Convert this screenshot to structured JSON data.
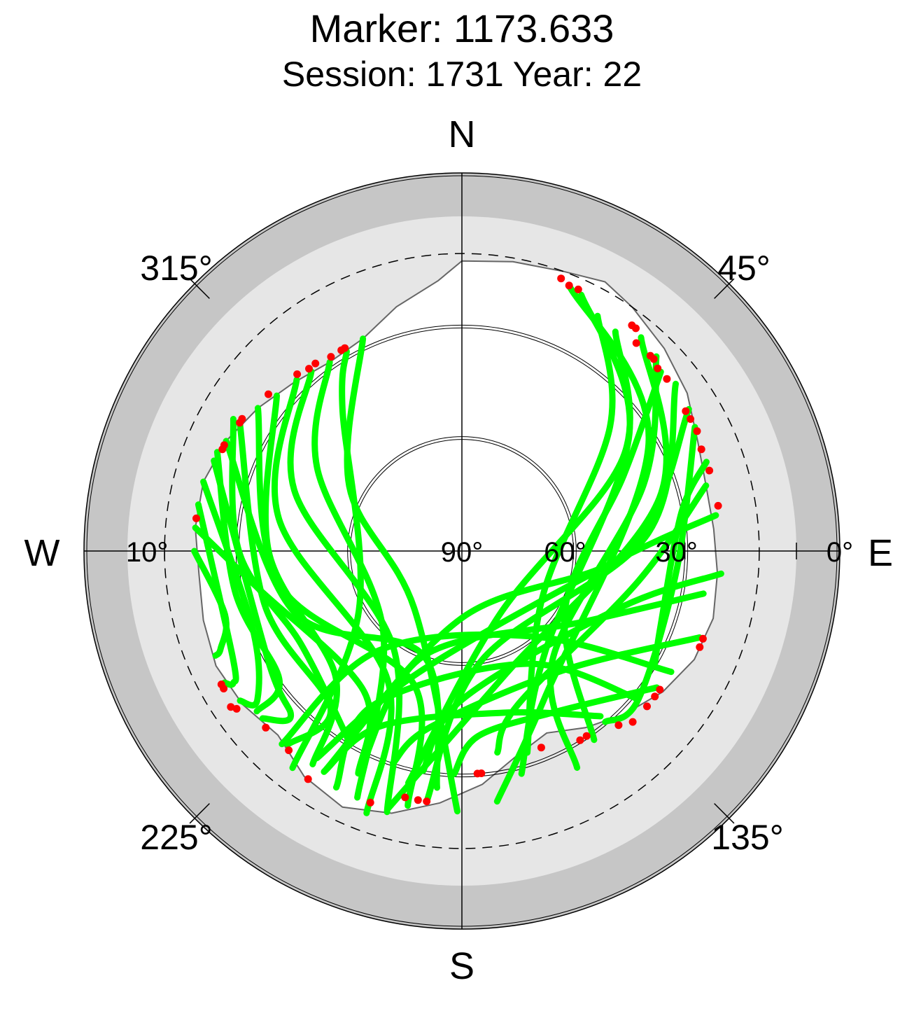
{
  "title": "Marker: 1173.633",
  "subtitle": "Session: 1731 Year: 22",
  "compass": {
    "north": "N",
    "south": "S",
    "west": "W",
    "east": "E"
  },
  "chart_data": {
    "type": "polar-sky-plot",
    "azimuth_labels": [
      {
        "azimuth": 45,
        "label": "45°"
      },
      {
        "azimuth": 135,
        "label": "135°"
      },
      {
        "azimuth": 225,
        "label": "225°"
      },
      {
        "azimuth": 315,
        "label": "315°"
      }
    ],
    "elevation_labels": [
      {
        "elevation": 90,
        "label": "90°"
      },
      {
        "elevation": 60,
        "label": "60°"
      },
      {
        "elevation": 30,
        "label": "30°"
      },
      {
        "elevation": 0,
        "label": "0°"
      },
      {
        "elevation": 10,
        "label": "10°",
        "side": "west"
      }
    ],
    "elevation_rings": [
      60,
      30,
      10
    ],
    "cutoff_elevation": 10,
    "colors": {
      "track": "#00ff00",
      "track_endpoint": "#ff0000",
      "outer_band": "#c6c6c6",
      "below_cutoff": "#e6e6e6",
      "visible_sky": "#ffffff",
      "horizon_mask_line": "#666666"
    },
    "horizon_mask": [
      {
        "az": 0,
        "el": 12
      },
      {
        "az": 10,
        "el": 11
      },
      {
        "az": 20,
        "el": 10
      },
      {
        "az": 28,
        "el": 8
      },
      {
        "az": 35,
        "el": 10
      },
      {
        "az": 45,
        "el": 13
      },
      {
        "az": 55,
        "el": 16
      },
      {
        "az": 65,
        "el": 20
      },
      {
        "az": 75,
        "el": 22
      },
      {
        "az": 85,
        "el": 22
      },
      {
        "az": 95,
        "el": 21
      },
      {
        "az": 105,
        "el": 20
      },
      {
        "az": 115,
        "el": 21
      },
      {
        "az": 125,
        "el": 24
      },
      {
        "az": 135,
        "el": 28
      },
      {
        "az": 145,
        "el": 32
      },
      {
        "az": 155,
        "el": 36
      },
      {
        "az": 165,
        "el": 33
      },
      {
        "az": 175,
        "el": 27
      },
      {
        "az": 185,
        "el": 22
      },
      {
        "az": 195,
        "el": 17
      },
      {
        "az": 205,
        "el": 14
      },
      {
        "az": 215,
        "el": 16
      },
      {
        "az": 225,
        "el": 20
      },
      {
        "az": 235,
        "el": 18
      },
      {
        "az": 245,
        "el": 17
      },
      {
        "az": 255,
        "el": 18
      },
      {
        "az": 265,
        "el": 19
      },
      {
        "az": 275,
        "el": 18
      },
      {
        "az": 285,
        "el": 18
      },
      {
        "az": 295,
        "el": 20
      },
      {
        "az": 305,
        "el": 23
      },
      {
        "az": 315,
        "el": 26
      },
      {
        "az": 325,
        "el": 28
      },
      {
        "az": 335,
        "el": 27
      },
      {
        "az": 345,
        "el": 22
      },
      {
        "az": 355,
        "el": 17
      },
      {
        "az": 360,
        "el": 12
      }
    ],
    "tracks": [
      [
        {
          "az": 22,
          "el": 13
        },
        {
          "az": 60,
          "el": 32
        },
        {
          "az": 150,
          "el": 45
        },
        {
          "az": 172,
          "el": 22
        }
      ],
      [
        {
          "az": 25,
          "el": 14
        },
        {
          "az": 55,
          "el": 35
        },
        {
          "az": 140,
          "el": 55
        },
        {
          "az": 165,
          "el": 28
        }
      ],
      [
        {
          "az": 30,
          "el": 17
        },
        {
          "az": 50,
          "el": 38
        },
        {
          "az": 120,
          "el": 65
        },
        {
          "az": 162,
          "el": 33
        }
      ],
      [
        {
          "az": 35,
          "el": 18
        },
        {
          "az": 60,
          "el": 40
        },
        {
          "az": 150,
          "el": 70
        },
        {
          "az": 193,
          "el": 26
        }
      ],
      [
        {
          "az": 40,
          "el": 15
        },
        {
          "az": 75,
          "el": 35
        },
        {
          "az": 160,
          "el": 55
        },
        {
          "az": 196,
          "el": 18
        }
      ],
      [
        {
          "az": 45,
          "el": 16
        },
        {
          "az": 70,
          "el": 38
        },
        {
          "az": 140,
          "el": 52
        },
        {
          "az": 152,
          "el": 24
        }
      ],
      [
        {
          "az": 48,
          "el": 18
        },
        {
          "az": 65,
          "el": 42
        },
        {
          "az": 120,
          "el": 58
        },
        {
          "az": 145,
          "el": 28
        }
      ],
      [
        {
          "az": 52,
          "el": 17
        },
        {
          "az": 85,
          "el": 40
        },
        {
          "az": 170,
          "el": 60
        },
        {
          "az": 188,
          "el": 22
        }
      ],
      [
        {
          "az": 58,
          "el": 18
        },
        {
          "az": 90,
          "el": 45
        },
        {
          "az": 180,
          "el": 72
        },
        {
          "az": 212,
          "el": 20
        }
      ],
      [
        {
          "az": 62,
          "el": 19
        },
        {
          "az": 95,
          "el": 32
        },
        {
          "az": 130,
          "el": 28
        },
        {
          "az": 140,
          "el": 30
        }
      ],
      [
        {
          "az": 70,
          "el": 20
        },
        {
          "az": 80,
          "el": 30
        },
        {
          "az": 110,
          "el": 33
        },
        {
          "az": 120,
          "el": 30
        }
      ],
      [
        {
          "az": 75,
          "el": 22
        },
        {
          "az": 100,
          "el": 42
        },
        {
          "az": 160,
          "el": 46
        },
        {
          "az": 170,
          "el": 35
        }
      ],
      [
        {
          "az": 82,
          "el": 21
        },
        {
          "az": 95,
          "el": 50
        },
        {
          "az": 200,
          "el": 55
        },
        {
          "az": 215,
          "el": 22
        }
      ],
      [
        {
          "az": 95,
          "el": 20
        },
        {
          "az": 110,
          "el": 45
        },
        {
          "az": 180,
          "el": 50
        },
        {
          "az": 190,
          "el": 30
        }
      ],
      [
        {
          "az": 100,
          "el": 24
        },
        {
          "az": 120,
          "el": 52
        },
        {
          "az": 200,
          "el": 60
        },
        {
          "az": 205,
          "el": 26
        }
      ],
      [
        {
          "az": 110,
          "el": 22
        },
        {
          "az": 140,
          "el": 48
        },
        {
          "az": 190,
          "el": 42
        },
        {
          "az": 198,
          "el": 30
        }
      ],
      [
        {
          "az": 120,
          "el": 25
        },
        {
          "az": 140,
          "el": 60
        },
        {
          "az": 220,
          "el": 55
        },
        {
          "az": 223,
          "el": 19
        }
      ],
      [
        {
          "az": 125,
          "el": 26
        },
        {
          "az": 150,
          "el": 40
        },
        {
          "az": 175,
          "el": 40
        },
        {
          "az": 182,
          "el": 30
        }
      ],
      [
        {
          "az": 130,
          "el": 28
        },
        {
          "az": 150,
          "el": 55
        },
        {
          "az": 210,
          "el": 42
        },
        {
          "az": 208,
          "el": 18
        }
      ],
      [
        {
          "az": 140,
          "el": 32
        },
        {
          "az": 165,
          "el": 45
        },
        {
          "az": 205,
          "el": 38
        },
        {
          "az": 212,
          "el": 20
        }
      ],
      [
        {
          "az": 330,
          "el": 28
        },
        {
          "az": 320,
          "el": 40
        },
        {
          "az": 240,
          "el": 58
        },
        {
          "az": 218,
          "el": 16
        }
      ],
      [
        {
          "az": 325,
          "el": 28
        },
        {
          "az": 300,
          "el": 45
        },
        {
          "az": 225,
          "el": 60
        },
        {
          "az": 203,
          "el": 18
        }
      ],
      [
        {
          "az": 320,
          "el": 27
        },
        {
          "az": 290,
          "el": 42
        },
        {
          "az": 215,
          "el": 58
        },
        {
          "az": 196,
          "el": 17
        }
      ],
      [
        {
          "az": 316,
          "el": 26
        },
        {
          "az": 280,
          "el": 40
        },
        {
          "az": 210,
          "el": 50
        },
        {
          "az": 200,
          "el": 15
        }
      ],
      [
        {
          "az": 310,
          "el": 25
        },
        {
          "az": 270,
          "el": 38
        },
        {
          "az": 225,
          "el": 42
        },
        {
          "az": 215,
          "el": 20
        }
      ],
      [
        {
          "az": 305,
          "el": 23
        },
        {
          "az": 260,
          "el": 40
        },
        {
          "az": 200,
          "el": 52
        },
        {
          "az": 192,
          "el": 20
        }
      ],
      [
        {
          "az": 300,
          "el": 21
        },
        {
          "az": 255,
          "el": 35
        },
        {
          "az": 220,
          "el": 35
        },
        {
          "az": 222,
          "el": 20
        }
      ],
      [
        {
          "az": 295,
          "el": 20
        },
        {
          "az": 250,
          "el": 42
        },
        {
          "az": 200,
          "el": 60
        },
        {
          "az": 186,
          "el": 26
        }
      ],
      [
        {
          "az": 290,
          "el": 19
        },
        {
          "az": 240,
          "el": 30
        },
        {
          "az": 226,
          "el": 26
        },
        {
          "az": 230,
          "el": 20
        }
      ],
      [
        {
          "az": 285,
          "el": 18
        },
        {
          "az": 250,
          "el": 30
        },
        {
          "az": 234,
          "el": 22
        },
        {
          "az": 236,
          "el": 18
        }
      ],
      [
        {
          "az": 280,
          "el": 18
        },
        {
          "az": 245,
          "el": 22
        },
        {
          "az": 240,
          "el": 19
        },
        {
          "az": 241,
          "el": 17
        }
      ],
      [
        {
          "az": 275,
          "el": 18
        },
        {
          "az": 260,
          "el": 34
        },
        {
          "az": 215,
          "el": 44
        },
        {
          "az": 205,
          "el": 24
        }
      ],
      [
        {
          "az": 270,
          "el": 18
        },
        {
          "az": 255,
          "el": 24
        },
        {
          "az": 248,
          "el": 20
        },
        {
          "az": 247,
          "el": 18
        }
      ],
      [
        {
          "az": 335,
          "el": 27
        },
        {
          "az": 300,
          "el": 55
        },
        {
          "az": 220,
          "el": 70
        },
        {
          "az": 181,
          "el": 20
        }
      ],
      [
        {
          "az": 300,
          "el": 19
        },
        {
          "az": 270,
          "el": 30
        },
        {
          "az": 240,
          "el": 40
        },
        {
          "az": 210,
          "el": 30
        }
      ],
      [
        {
          "az": 292,
          "el": 19
        },
        {
          "az": 260,
          "el": 28
        },
        {
          "az": 235,
          "el": 30
        },
        {
          "az": 232,
          "el": 20
        }
      ]
    ],
    "endpoints": [
      {
        "az": 37,
        "el": 14
      },
      {
        "az": 38,
        "el": 14
      },
      {
        "az": 40,
        "el": 17
      },
      {
        "az": 44,
        "el": 17
      },
      {
        "az": 45,
        "el": 17
      },
      {
        "az": 47,
        "el": 18
      },
      {
        "az": 50,
        "el": 18
      },
      {
        "az": 58,
        "el": 19
      },
      {
        "az": 60,
        "el": 19
      },
      {
        "az": 63,
        "el": 19
      },
      {
        "az": 67,
        "el": 20
      },
      {
        "az": 72,
        "el": 20
      },
      {
        "az": 80,
        "el": 20
      },
      {
        "az": 110,
        "el": 21
      },
      {
        "az": 112,
        "el": 21
      },
      {
        "az": 125,
        "el": 25
      },
      {
        "az": 127,
        "el": 25
      },
      {
        "az": 130,
        "el": 25
      },
      {
        "az": 135,
        "el": 25
      },
      {
        "az": 138,
        "el": 27
      },
      {
        "az": 146,
        "el": 30
      },
      {
        "az": 148,
        "el": 30
      },
      {
        "az": 158,
        "el": 33
      },
      {
        "az": 175,
        "el": 30
      },
      {
        "az": 176,
        "el": 30
      },
      {
        "az": 188,
        "el": 22
      },
      {
        "az": 190,
        "el": 22
      },
      {
        "az": 193,
        "el": 22
      },
      {
        "az": 200,
        "el": 18
      },
      {
        "az": 214,
        "el": 16
      },
      {
        "az": 221,
        "el": 19
      },
      {
        "az": 228,
        "el": 19
      },
      {
        "az": 235,
        "el": 16
      },
      {
        "az": 236,
        "el": 15
      },
      {
        "az": 240,
        "el": 16
      },
      {
        "az": 241,
        "el": 16
      },
      {
        "az": 277,
        "el": 18
      },
      {
        "az": 293,
        "el": 20
      },
      {
        "az": 294,
        "el": 20
      },
      {
        "az": 300,
        "el": 21
      },
      {
        "az": 301,
        "el": 21
      },
      {
        "az": 309,
        "el": 23
      },
      {
        "az": 317,
        "el": 25
      },
      {
        "az": 320,
        "el": 26
      },
      {
        "az": 322,
        "el": 26
      },
      {
        "az": 326,
        "el": 27
      },
      {
        "az": 329,
        "el": 27
      },
      {
        "az": 330,
        "el": 27
      },
      {
        "az": 20,
        "el": 12
      },
      {
        "az": 22,
        "el": 13
      },
      {
        "az": 24,
        "el": 13
      }
    ]
  }
}
